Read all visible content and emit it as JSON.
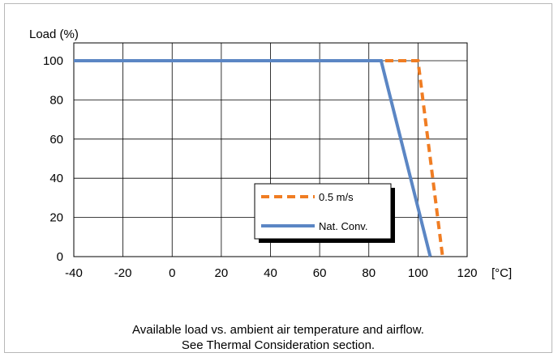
{
  "chart_data": {
    "type": "line",
    "title": "",
    "ylabel": "Load (%)",
    "xlabel": "[°C]",
    "xlim": [
      -40,
      120
    ],
    "ylim": [
      0,
      100
    ],
    "x_ticks": [
      -40,
      -20,
      0,
      20,
      40,
      60,
      80,
      100,
      120
    ],
    "y_ticks": [
      0,
      20,
      40,
      60,
      80,
      100
    ],
    "grid": true,
    "legend_position": "lower-right",
    "series": [
      {
        "name": "0.5 m/s",
        "style": "dashed",
        "color": "#F07D23",
        "x": [
          -40,
          100,
          110
        ],
        "y": [
          100,
          100,
          0
        ]
      },
      {
        "name": "Nat. Conv.",
        "style": "solid",
        "color": "#5B86C4",
        "x": [
          -40,
          85,
          105
        ],
        "y": [
          100,
          100,
          0
        ]
      }
    ]
  },
  "caption": {
    "line1": "Available load vs. ambient air temperature and airflow.",
    "line2": "See Thermal Consideration section."
  }
}
